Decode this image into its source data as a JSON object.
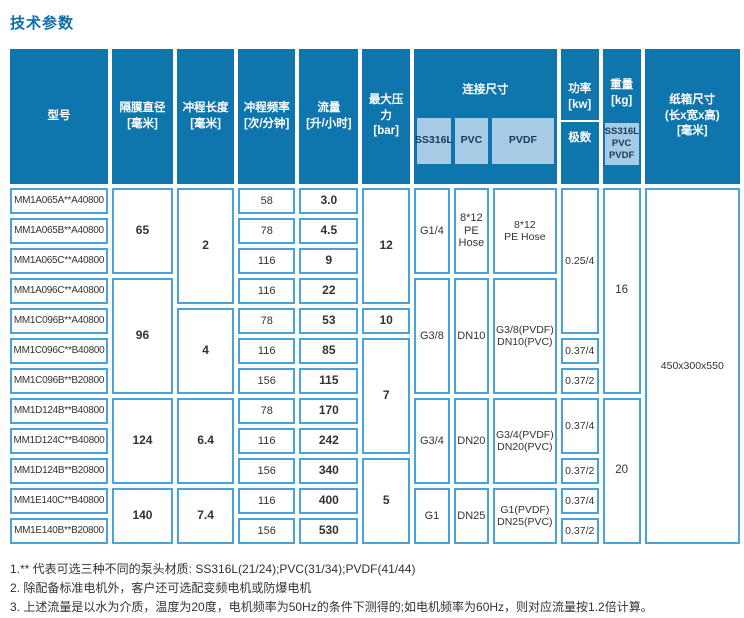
{
  "title": "技术参数",
  "colors": {
    "header_bg": "#0f75ad",
    "subheader_bg": "#a8cbe5",
    "cell_border": "#4aa3d8",
    "title_color": "#0c6dac"
  },
  "header": {
    "model": "型号",
    "diaphragm": "隔膜直径\n[毫米]",
    "stroke": "冲程长度\n[毫米]",
    "frequency": "冲程频率\n[次/分钟]",
    "flow": "流量\n[升/小时]",
    "pressure": "最大压力\n[bar]",
    "connection": "连接尺寸",
    "connection_subs": [
      "SS316L",
      "PVC",
      "PVDF"
    ],
    "power": "功率\n[kw]",
    "pole": "极数",
    "weight": "重量\n[kg]",
    "weight_sub": "SS316L\nPVC\nPVDF",
    "carton": "纸箱尺寸\n(长x宽x高)\n[毫米]"
  },
  "table": {
    "rows": [
      [
        {
          "c": "model",
          "t": "MM1A065A**A40800"
        },
        {
          "c": "diaphragm",
          "t": "65",
          "rs": 3,
          "b": 1
        },
        {
          "c": "stroke",
          "t": "2",
          "rs": 4,
          "b": 1
        },
        {
          "c": "frequency",
          "t": "58"
        },
        {
          "c": "flow",
          "t": "3.0",
          "b": 1
        },
        {
          "c": "pressure",
          "t": "12",
          "rs": 4,
          "b": 1
        },
        {
          "c": "ss316l",
          "t": "G1/4",
          "rs": 3
        },
        {
          "c": "pvc",
          "t": "8*12\nPE\nHose",
          "rs": 3
        },
        {
          "c": "pvdf",
          "t": "8*12\nPE Hose",
          "rs": 3
        },
        {
          "c": "power",
          "t": "0.25/4",
          "rs": 5
        },
        {
          "c": "weight",
          "t": "16",
          "rs": 7
        },
        {
          "c": "carton",
          "t": "450x300x550",
          "rs": 12
        }
      ],
      [
        {
          "c": "model",
          "t": "MM1A065B**A40800"
        },
        {
          "c": "frequency",
          "t": "78"
        },
        {
          "c": "flow",
          "t": "4.5",
          "b": 1
        }
      ],
      [
        {
          "c": "model",
          "t": "MM1A065C**A40800"
        },
        {
          "c": "frequency",
          "t": "116"
        },
        {
          "c": "flow",
          "t": "9",
          "b": 1
        }
      ],
      [
        {
          "c": "model",
          "t": "MM1A096C**A40800"
        },
        {
          "c": "diaphragm",
          "t": "96",
          "rs": 4,
          "b": 1
        },
        {
          "c": "frequency",
          "t": "116"
        },
        {
          "c": "flow",
          "t": "22",
          "b": 1
        },
        {
          "c": "ss316l",
          "t": "G3/8",
          "rs": 4
        },
        {
          "c": "pvc",
          "t": "DN10",
          "rs": 4
        },
        {
          "c": "pvdf",
          "t": "G3/8(PVDF)\nDN10(PVC)",
          "rs": 4
        }
      ],
      [
        {
          "c": "model",
          "t": "MM1C096B**A40800"
        },
        {
          "c": "stroke",
          "t": "4",
          "rs": 3,
          "b": 1
        },
        {
          "c": "frequency",
          "t": "78"
        },
        {
          "c": "flow",
          "t": "53",
          "b": 1
        },
        {
          "c": "pressure",
          "t": "10",
          "b": 1
        }
      ],
      [
        {
          "c": "model",
          "t": "MM1C096C**B40800"
        },
        {
          "c": "frequency",
          "t": "116"
        },
        {
          "c": "flow",
          "t": "85",
          "b": 1
        },
        {
          "c": "pressure",
          "t": "7",
          "rs": 4,
          "b": 1
        },
        {
          "c": "power",
          "t": "0.37/4"
        }
      ],
      [
        {
          "c": "model",
          "t": "MM1C096B**B20800"
        },
        {
          "c": "frequency",
          "t": "156"
        },
        {
          "c": "flow",
          "t": "115",
          "b": 1
        },
        {
          "c": "power",
          "t": "0.37/2"
        }
      ],
      [
        {
          "c": "model",
          "t": "MM1D124B**B40800"
        },
        {
          "c": "diaphragm",
          "t": "124",
          "rs": 3,
          "b": 1
        },
        {
          "c": "stroke",
          "t": "6.4",
          "rs": 3,
          "b": 1
        },
        {
          "c": "frequency",
          "t": "78"
        },
        {
          "c": "flow",
          "t": "170",
          "b": 1
        },
        {
          "c": "ss316l",
          "t": "G3/4",
          "rs": 3
        },
        {
          "c": "pvc",
          "t": "DN20",
          "rs": 3
        },
        {
          "c": "pvdf",
          "t": "G3/4(PVDF)\nDN20(PVC)",
          "rs": 3
        },
        {
          "c": "power",
          "t": "0.37/4",
          "rs": 2
        },
        {
          "c": "weight",
          "t": "20",
          "rs": 5
        }
      ],
      [
        {
          "c": "model",
          "t": "MM1D124C**B40800"
        },
        {
          "c": "frequency",
          "t": "116"
        },
        {
          "c": "flow",
          "t": "242",
          "b": 1
        }
      ],
      [
        {
          "c": "model",
          "t": "MM1D124B**B20800"
        },
        {
          "c": "frequency",
          "t": "156"
        },
        {
          "c": "flow",
          "t": "340",
          "b": 1
        },
        {
          "c": "pressure",
          "t": "5",
          "rs": 3,
          "b": 1
        },
        {
          "c": "power",
          "t": "0.37/2"
        }
      ],
      [
        {
          "c": "model",
          "t": "MM1E140C**B40800"
        },
        {
          "c": "diaphragm",
          "t": "140",
          "rs": 2,
          "b": 1
        },
        {
          "c": "stroke",
          "t": "7.4",
          "rs": 2,
          "b": 1
        },
        {
          "c": "frequency",
          "t": "116"
        },
        {
          "c": "flow",
          "t": "400",
          "b": 1
        },
        {
          "c": "ss316l",
          "t": "G1",
          "rs": 2
        },
        {
          "c": "pvc",
          "t": "DN25",
          "rs": 2
        },
        {
          "c": "pvdf",
          "t": "G1(PVDF)\nDN25(PVC)",
          "rs": 2
        },
        {
          "c": "power",
          "t": "0.37/4"
        }
      ],
      [
        {
          "c": "model",
          "t": "MM1E140B**B20800"
        },
        {
          "c": "frequency",
          "t": "156"
        },
        {
          "c": "flow",
          "t": "530",
          "b": 1
        },
        {
          "c": "power",
          "t": "0.37/2"
        }
      ]
    ]
  },
  "footnotes": [
    "1.** 代表可选三种不同的泵头材质: SS316L(21/24);PVC(31/34);PVDF(41/44)",
    "2. 除配备标准电机外，客户还可选配变频电机或防爆电机",
    "3. 上述流量是以水为介质，温度为20度，电机频率为50Hz的条件下测得的;如电机频率为60Hz，则对应流量按1.2倍计算。"
  ]
}
